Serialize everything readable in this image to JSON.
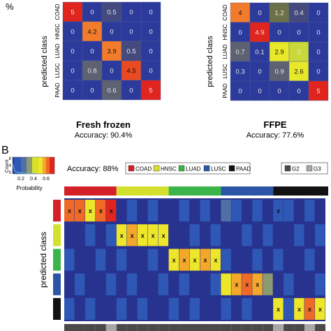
{
  "colors": {
    "blue": "#2c3a9c",
    "dark_blue": "#27338f",
    "grey": "#5d6171",
    "olive": "#6b7048",
    "orange": "#f27c2c",
    "red_orange": "#ea4a22",
    "red": "#e0241e",
    "yellow": "#e8e82a",
    "COAD": "#d42027",
    "HNSC": "#d3e02d",
    "LUAD": "#3bb44a",
    "LUSC": "#2d55a5",
    "PAAD": "#111111",
    "G2": "#4a4a4a",
    "G3": "#a8a8a8"
  },
  "panel_a": {
    "corner_label": "%",
    "y_axis_label": "predicted class",
    "classes": [
      "COAD",
      "HNSC",
      "LUAD",
      "LUSC",
      "PAAD"
    ]
  },
  "chart_data": [
    {
      "type": "heatmap",
      "title": "Fresh frozen",
      "subtitle": "Accuracy: 90.4%",
      "ylabel": "predicted class",
      "rows": [
        "COAD",
        "HNSC",
        "LUAD",
        "LUSC",
        "PAAD"
      ],
      "values": [
        [
          "5",
          "0",
          "0.5",
          "0",
          "0"
        ],
        [
          "0",
          "4.2",
          "0",
          "0",
          "0"
        ],
        [
          "0",
          "0",
          "3.9",
          "0.5",
          "0"
        ],
        [
          "0",
          "0.8",
          "0",
          "4.5",
          "0"
        ],
        [
          "0",
          "0",
          "0.6",
          "0",
          "5"
        ]
      ]
    },
    {
      "type": "heatmap",
      "title": "FFPE",
      "subtitle": "Accuracy: 77.6%",
      "ylabel": "predicted class",
      "rows": [
        "COAD",
        "HNSC",
        "LUAD",
        "LUSC",
        "PAAD"
      ],
      "values": [
        [
          "4",
          "0",
          "1.2",
          "0.4",
          "0"
        ],
        [
          "0",
          "4.9",
          "0",
          "0",
          "0"
        ],
        [
          "0.7",
          "0.1",
          "2.9",
          "2",
          "0"
        ],
        [
          "0.3",
          "0",
          "0.9",
          "2.6",
          "0"
        ],
        [
          "0",
          "0",
          "0",
          "0",
          "5"
        ]
      ]
    },
    {
      "type": "heatmap",
      "panel_label": "B",
      "accuracy": "Accuracy: 88%",
      "ylabel": "predicted class",
      "colorbar": {
        "ylabel": "Count",
        "xlabel": "Probability",
        "xticks": [
          "0.2",
          "0.4",
          "0.6"
        ],
        "yticks": [
          "0",
          "4",
          "8"
        ]
      },
      "legend_classes": [
        "COAD",
        "HNSC",
        "LUAD",
        "LUSC",
        "PAAD"
      ],
      "legend_grades": [
        "G2",
        "G3"
      ],
      "mark": "x",
      "true_class_groups": [
        "COAD",
        "HNSC",
        "LUAD",
        "LUSC",
        "PAAD"
      ],
      "samples_per_group": 5,
      "prediction_rows": [
        "COAD",
        "HNSC",
        "LUAD",
        "LUSC",
        "PAAD"
      ],
      "cells": [
        {
          "row": "COAD",
          "col": 0,
          "p": 0.7
        },
        {
          "row": "COAD",
          "col": 1,
          "p": 0.72
        },
        {
          "row": "COAD",
          "col": 2,
          "p": 0.6
        },
        {
          "row": "COAD",
          "col": 3,
          "p": 0.7
        },
        {
          "row": "COAD",
          "col": 4,
          "p": 0.74
        },
        {
          "row": "COAD",
          "col": 15,
          "p": 0.32
        },
        {
          "row": "COAD",
          "col": 20,
          "p": 0.15
        },
        {
          "row": "HNSC",
          "col": 5,
          "p": 0.56
        },
        {
          "row": "HNSC",
          "col": 6,
          "p": 0.62
        },
        {
          "row": "HNSC",
          "col": 7,
          "p": 0.58
        },
        {
          "row": "HNSC",
          "col": 8,
          "p": 0.6
        },
        {
          "row": "HNSC",
          "col": 9,
          "p": 0.56
        },
        {
          "row": "LUAD",
          "col": 10,
          "p": 0.56
        },
        {
          "row": "LUAD",
          "col": 11,
          "p": 0.66
        },
        {
          "row": "LUAD",
          "col": 12,
          "p": 0.58
        },
        {
          "row": "LUAD",
          "col": 13,
          "p": 0.66
        },
        {
          "row": "LUAD",
          "col": 14,
          "p": 0.58
        },
        {
          "row": "LUSC",
          "col": 15,
          "p": 0.56
        },
        {
          "row": "LUSC",
          "col": 16,
          "p": 0.62
        },
        {
          "row": "LUSC",
          "col": 17,
          "p": 0.68
        },
        {
          "row": "LUSC",
          "col": 18,
          "p": 0.66
        },
        {
          "row": "LUSC",
          "col": 19,
          "p": 0.4
        },
        {
          "row": "PAAD",
          "col": 20,
          "p": 0.58
        },
        {
          "row": "PAAD",
          "col": 21,
          "p": 0.2
        },
        {
          "row": "PAAD",
          "col": 22,
          "p": 0.6
        },
        {
          "row": "PAAD",
          "col": 23,
          "p": 0.68
        },
        {
          "row": "PAAD",
          "col": 24,
          "p": 0.58
        }
      ],
      "x_marks": [
        [
          "COAD",
          0
        ],
        [
          "COAD",
          1
        ],
        [
          "COAD",
          2
        ],
        [
          "COAD",
          3
        ],
        [
          "COAD",
          4
        ],
        [
          "COAD",
          20
        ],
        [
          "HNSC",
          5
        ],
        [
          "HNSC",
          6
        ],
        [
          "HNSC",
          7
        ],
        [
          "HNSC",
          8
        ],
        [
          "HNSC",
          9
        ],
        [
          "LUAD",
          10
        ],
        [
          "LUAD",
          11
        ],
        [
          "LUAD",
          12
        ],
        [
          "LUAD",
          13
        ],
        [
          "LUAD",
          14
        ],
        [
          "LUSC",
          16
        ],
        [
          "LUSC",
          17
        ],
        [
          "LUSC",
          18
        ],
        [
          "PAAD",
          20
        ],
        [
          "PAAD",
          22
        ],
        [
          "PAAD",
          23
        ],
        [
          "PAAD",
          24
        ]
      ],
      "grade_bar": [
        "G2",
        "G2",
        "G2",
        "G2",
        "G3",
        "G2",
        "G2",
        "G2",
        "G2",
        "G2",
        "G2",
        "G2",
        "G2",
        "G2",
        "G2",
        "G2",
        "G2",
        "G2",
        "G2",
        "G2",
        "G3",
        "G2",
        "G2",
        "G3",
        "G2"
      ]
    }
  ]
}
